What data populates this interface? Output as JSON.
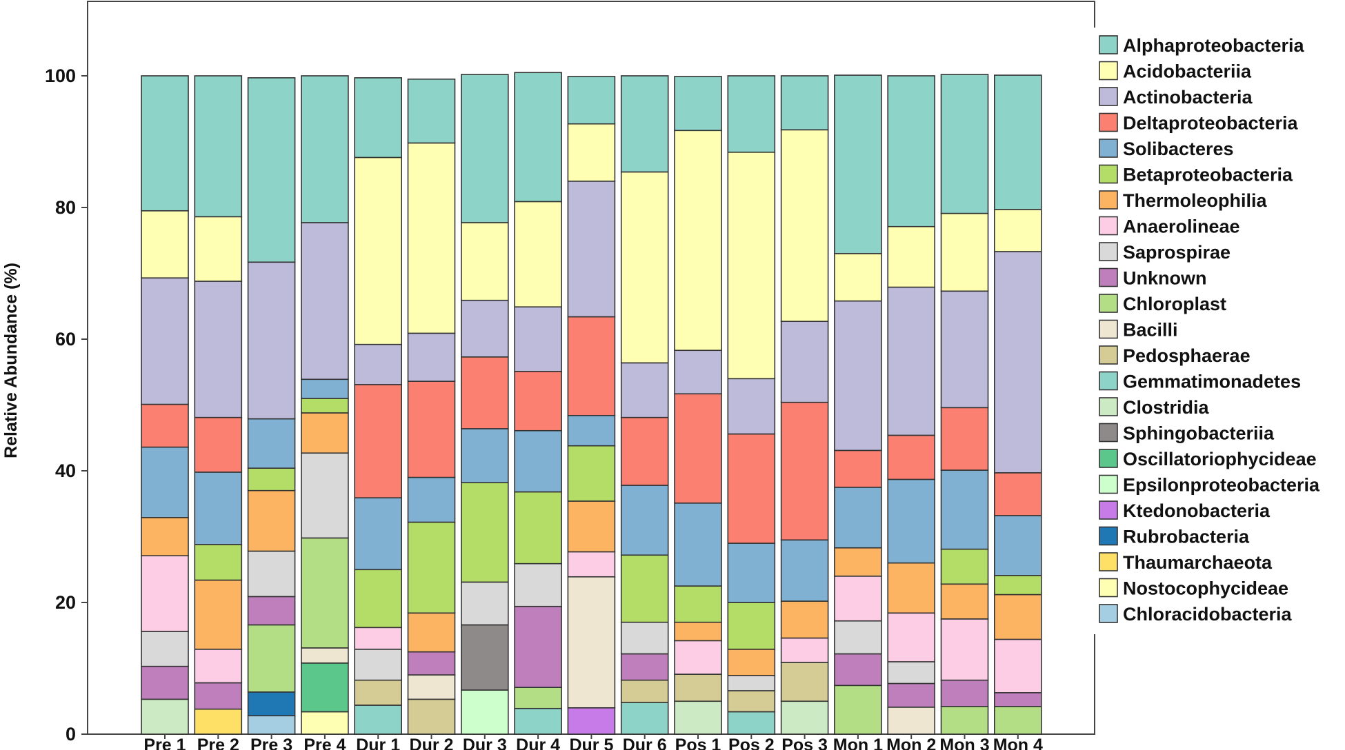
{
  "chart_data": {
    "type": "bar",
    "stacked": true,
    "ylabel": "Relative Abundance (%)",
    "xlabel": "",
    "ylim": [
      0,
      110
    ],
    "yticks": [
      0,
      20,
      40,
      60,
      80,
      100
    ],
    "grid": false,
    "legend_position": "right",
    "categories": [
      "Pre 1",
      "Pre 2",
      "Pre 3",
      "Pre 4",
      "Dur 1",
      "Dur 2",
      "Dur 3",
      "Dur 4",
      "Dur 5",
      "Dur 6",
      "Pos 1",
      "Pos 2",
      "Pos 3",
      "Mon 1",
      "Mon 2",
      "Mon 3",
      "Mon 4"
    ],
    "series": [
      {
        "name": "Chloracidobacteria",
        "color": "#a6cee3",
        "values": [
          0,
          0,
          2.8,
          0,
          0,
          0,
          0,
          0,
          0,
          0,
          0,
          0,
          0,
          0,
          0,
          0,
          0
        ]
      },
      {
        "name": "Nostocophycideae",
        "color": "#ffffb3",
        "values": [
          0,
          0,
          0,
          3.4,
          0,
          0,
          0,
          0,
          0,
          0,
          0,
          0,
          0,
          0,
          0,
          0,
          0
        ]
      },
      {
        "name": "Thaumarchaeota",
        "color": "#ffe066",
        "values": [
          0,
          3.8,
          0,
          0,
          0,
          0,
          0,
          0,
          0,
          0,
          0,
          0,
          0,
          0,
          0,
          0,
          0
        ]
      },
      {
        "name": "Rubrobacteria",
        "color": "#1f78b4",
        "values": [
          0,
          0,
          3.6,
          0,
          0,
          0,
          0,
          0,
          0,
          0,
          0,
          0,
          0,
          0,
          0,
          0,
          0
        ]
      },
      {
        "name": "Ktedonobacteria",
        "color": "#c77be8",
        "values": [
          0,
          0,
          0,
          0,
          0,
          0,
          0,
          0,
          4,
          0,
          0,
          0,
          0,
          0,
          0,
          0,
          0
        ]
      },
      {
        "name": "Epsilonproteobacteria",
        "color": "#ccffcc",
        "values": [
          0,
          0,
          0,
          0,
          0,
          0,
          6.7,
          0,
          0,
          0,
          0,
          0,
          0,
          0,
          0,
          0,
          0
        ]
      },
      {
        "name": "Oscillatoriophycideae",
        "color": "#5cc78a",
        "values": [
          0,
          0,
          0,
          7.4,
          0,
          0,
          0,
          0,
          0,
          0,
          0,
          0,
          0,
          0,
          0,
          0,
          0
        ]
      },
      {
        "name": "Sphingobacteriia",
        "color": "#8f8a8a",
        "values": [
          0,
          0,
          0,
          0,
          0,
          0,
          9.9,
          0,
          0,
          0,
          0,
          0,
          0,
          0,
          0,
          0,
          0
        ]
      },
      {
        "name": "Clostridia",
        "color": "#ccebc5",
        "values": [
          5.3,
          0,
          0,
          0,
          0,
          0,
          0,
          0,
          0,
          0,
          5,
          0,
          5,
          0,
          0,
          0,
          0
        ]
      },
      {
        "name": "Gemmatimonadetes",
        "color": "#8dd3c7",
        "values": [
          0,
          0,
          0,
          0,
          4.4,
          0,
          0,
          3.9,
          0,
          4.8,
          0,
          3.4,
          0,
          0,
          0,
          0,
          0
        ]
      },
      {
        "name": "Pedosphaerae",
        "color": "#d4cc94",
        "values": [
          0,
          0,
          0,
          0,
          3.8,
          5.3,
          0,
          0,
          0,
          3.4,
          4.1,
          3.2,
          5.9,
          0,
          0,
          0,
          0
        ]
      },
      {
        "name": "Bacilli",
        "color": "#efe6d2",
        "values": [
          0,
          0,
          0,
          2.3,
          0,
          3.7,
          0,
          0,
          19.9,
          0,
          0,
          0,
          0,
          0,
          4.1,
          0,
          0
        ]
      },
      {
        "name": "Chloroplast",
        "color": "#b3de86",
        "values": [
          0,
          0,
          10.2,
          16.7,
          0,
          0,
          0,
          3.2,
          0,
          0,
          0,
          0,
          0,
          7.4,
          0,
          4.2,
          4.2
        ]
      },
      {
        "name": "Unknown",
        "color": "#be7fbc",
        "values": [
          5,
          4,
          4.3,
          0,
          0,
          3.5,
          0,
          12.3,
          0,
          4,
          0,
          0,
          0,
          4.8,
          3.6,
          4,
          2.1
        ]
      },
      {
        "name": "Saprospirae",
        "color": "#d9d9d9",
        "values": [
          5.3,
          0,
          6.9,
          12.9,
          4.7,
          0,
          6.5,
          6.5,
          0,
          4.8,
          0,
          2.3,
          0,
          5,
          3.3,
          0,
          0
        ]
      },
      {
        "name": "Anaerolineae",
        "color": "#fccde5",
        "values": [
          11.5,
          5.1,
          0,
          0,
          3.3,
          0,
          0,
          0,
          3.8,
          0,
          5.1,
          0,
          3.7,
          6.8,
          7.4,
          9.3,
          8.1
        ]
      },
      {
        "name": "Thermoleophilia",
        "color": "#fdb462",
        "values": [
          5.8,
          10.5,
          9.2,
          6.1,
          0,
          5.9,
          0,
          0,
          7.7,
          0,
          2.8,
          4,
          5.6,
          4.3,
          7.6,
          5.3,
          6.8
        ]
      },
      {
        "name": "Betaproteobacteria",
        "color": "#b3dd66",
        "values": [
          0,
          5.4,
          3.4,
          2.2,
          8.8,
          13.8,
          15.1,
          10.9,
          8.4,
          10.2,
          5.5,
          7.1,
          0,
          0,
          0,
          5.3,
          2.9
        ]
      },
      {
        "name": "Solibacteres",
        "color": "#80b1d3",
        "values": [
          10.7,
          11,
          7.5,
          2.9,
          10.9,
          6.8,
          8.2,
          9.3,
          4.6,
          10.6,
          12.6,
          9,
          9.3,
          9.2,
          12.7,
          12,
          9.1
        ]
      },
      {
        "name": "Deltaproteobacteria",
        "color": "#fb8072",
        "values": [
          6.5,
          8.3,
          0,
          0,
          17.2,
          14.6,
          10.9,
          9,
          15,
          10.3,
          16.6,
          16.6,
          20.9,
          5.6,
          6.7,
          9.5,
          6.5
        ]
      },
      {
        "name": "Actinobacteria",
        "color": "#bebada",
        "values": [
          19.2,
          20.7,
          23.8,
          23.8,
          6.1,
          7.3,
          8.6,
          9.8,
          20.6,
          8.3,
          6.6,
          8.4,
          12.3,
          22.7,
          22.5,
          17.7,
          33.6
        ]
      },
      {
        "name": "Acidobacteriia",
        "color": "#ffffb3",
        "values": [
          10.2,
          9.8,
          0,
          0,
          28.4,
          28.9,
          11.8,
          16,
          8.7,
          29,
          33.4,
          34.4,
          29.1,
          7.2,
          9.2,
          11.8,
          6.4
        ]
      },
      {
        "name": "Alphaproteobacteria",
        "color": "#8dd3c7",
        "values": [
          20.5,
          21.4,
          28,
          22.3,
          12.1,
          9.7,
          22.5,
          19.6,
          7.2,
          14.6,
          8.2,
          11.6,
          8.2,
          27.1,
          22.9,
          21.1,
          20.4
        ]
      }
    ],
    "legend_order": [
      "Alphaproteobacteria",
      "Acidobacteriia",
      "Actinobacteria",
      "Deltaproteobacteria",
      "Solibacteres",
      "Betaproteobacteria",
      "Thermoleophilia",
      "Anaerolineae",
      "Saprospirae",
      "Unknown",
      "Chloroplast",
      "Bacilli",
      "Pedosphaerae",
      "Gemmatimonadetes",
      "Clostridia",
      "Sphingobacteriia",
      "Oscillatoriophycideae",
      "Epsilonproteobacteria",
      "Ktedonobacteria",
      "Rubrobacteria",
      "Thaumarchaeota",
      "Nostocophycideae",
      "Chloracidobacteria"
    ]
  }
}
